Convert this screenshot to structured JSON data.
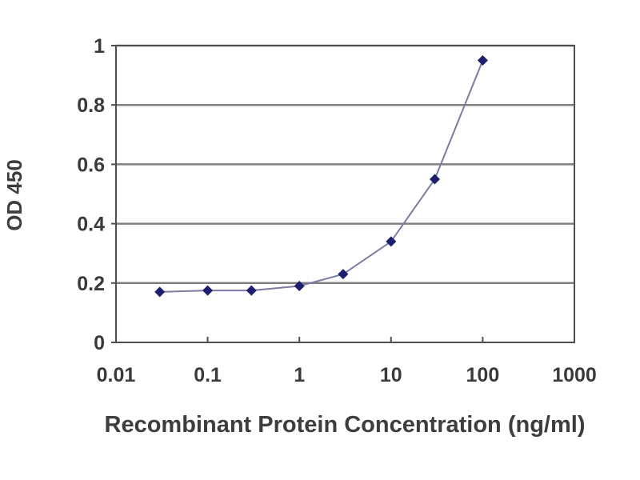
{
  "chart_data": {
    "type": "line",
    "title": "",
    "xlabel": "Recombinant Protein Concentration (ng/ml)",
    "ylabel": "OD 450",
    "x_scale": "log10",
    "xlim": [
      0.01,
      1000
    ],
    "ylim": [
      0,
      1
    ],
    "x_ticks": [
      0.01,
      0.1,
      1,
      10,
      100,
      1000
    ],
    "x_tick_labels": [
      "0.01",
      "0.1",
      "1",
      "10",
      "100",
      "1000"
    ],
    "y_ticks": [
      0,
      0.2,
      0.4,
      0.6,
      0.8,
      1
    ],
    "y_tick_labels": [
      "0",
      "0.2",
      "0.4",
      "0.6",
      "0.8",
      "1"
    ],
    "grid": "horizontal-major",
    "legend": "none",
    "series": [
      {
        "name": "OD 450",
        "x": [
          0.03,
          0.1,
          0.3,
          1,
          3,
          10,
          30,
          100
        ],
        "y": [
          0.17,
          0.175,
          0.175,
          0.19,
          0.23,
          0.34,
          0.55,
          0.95
        ],
        "marker": "diamond",
        "marker_color": "#1e1e6e",
        "line_color": "#7b7ba3"
      }
    ]
  },
  "colors": {
    "background": "#ffffff",
    "gridline": "#808080",
    "axis": "#4f4f4f",
    "text": "#3a3a3a"
  }
}
